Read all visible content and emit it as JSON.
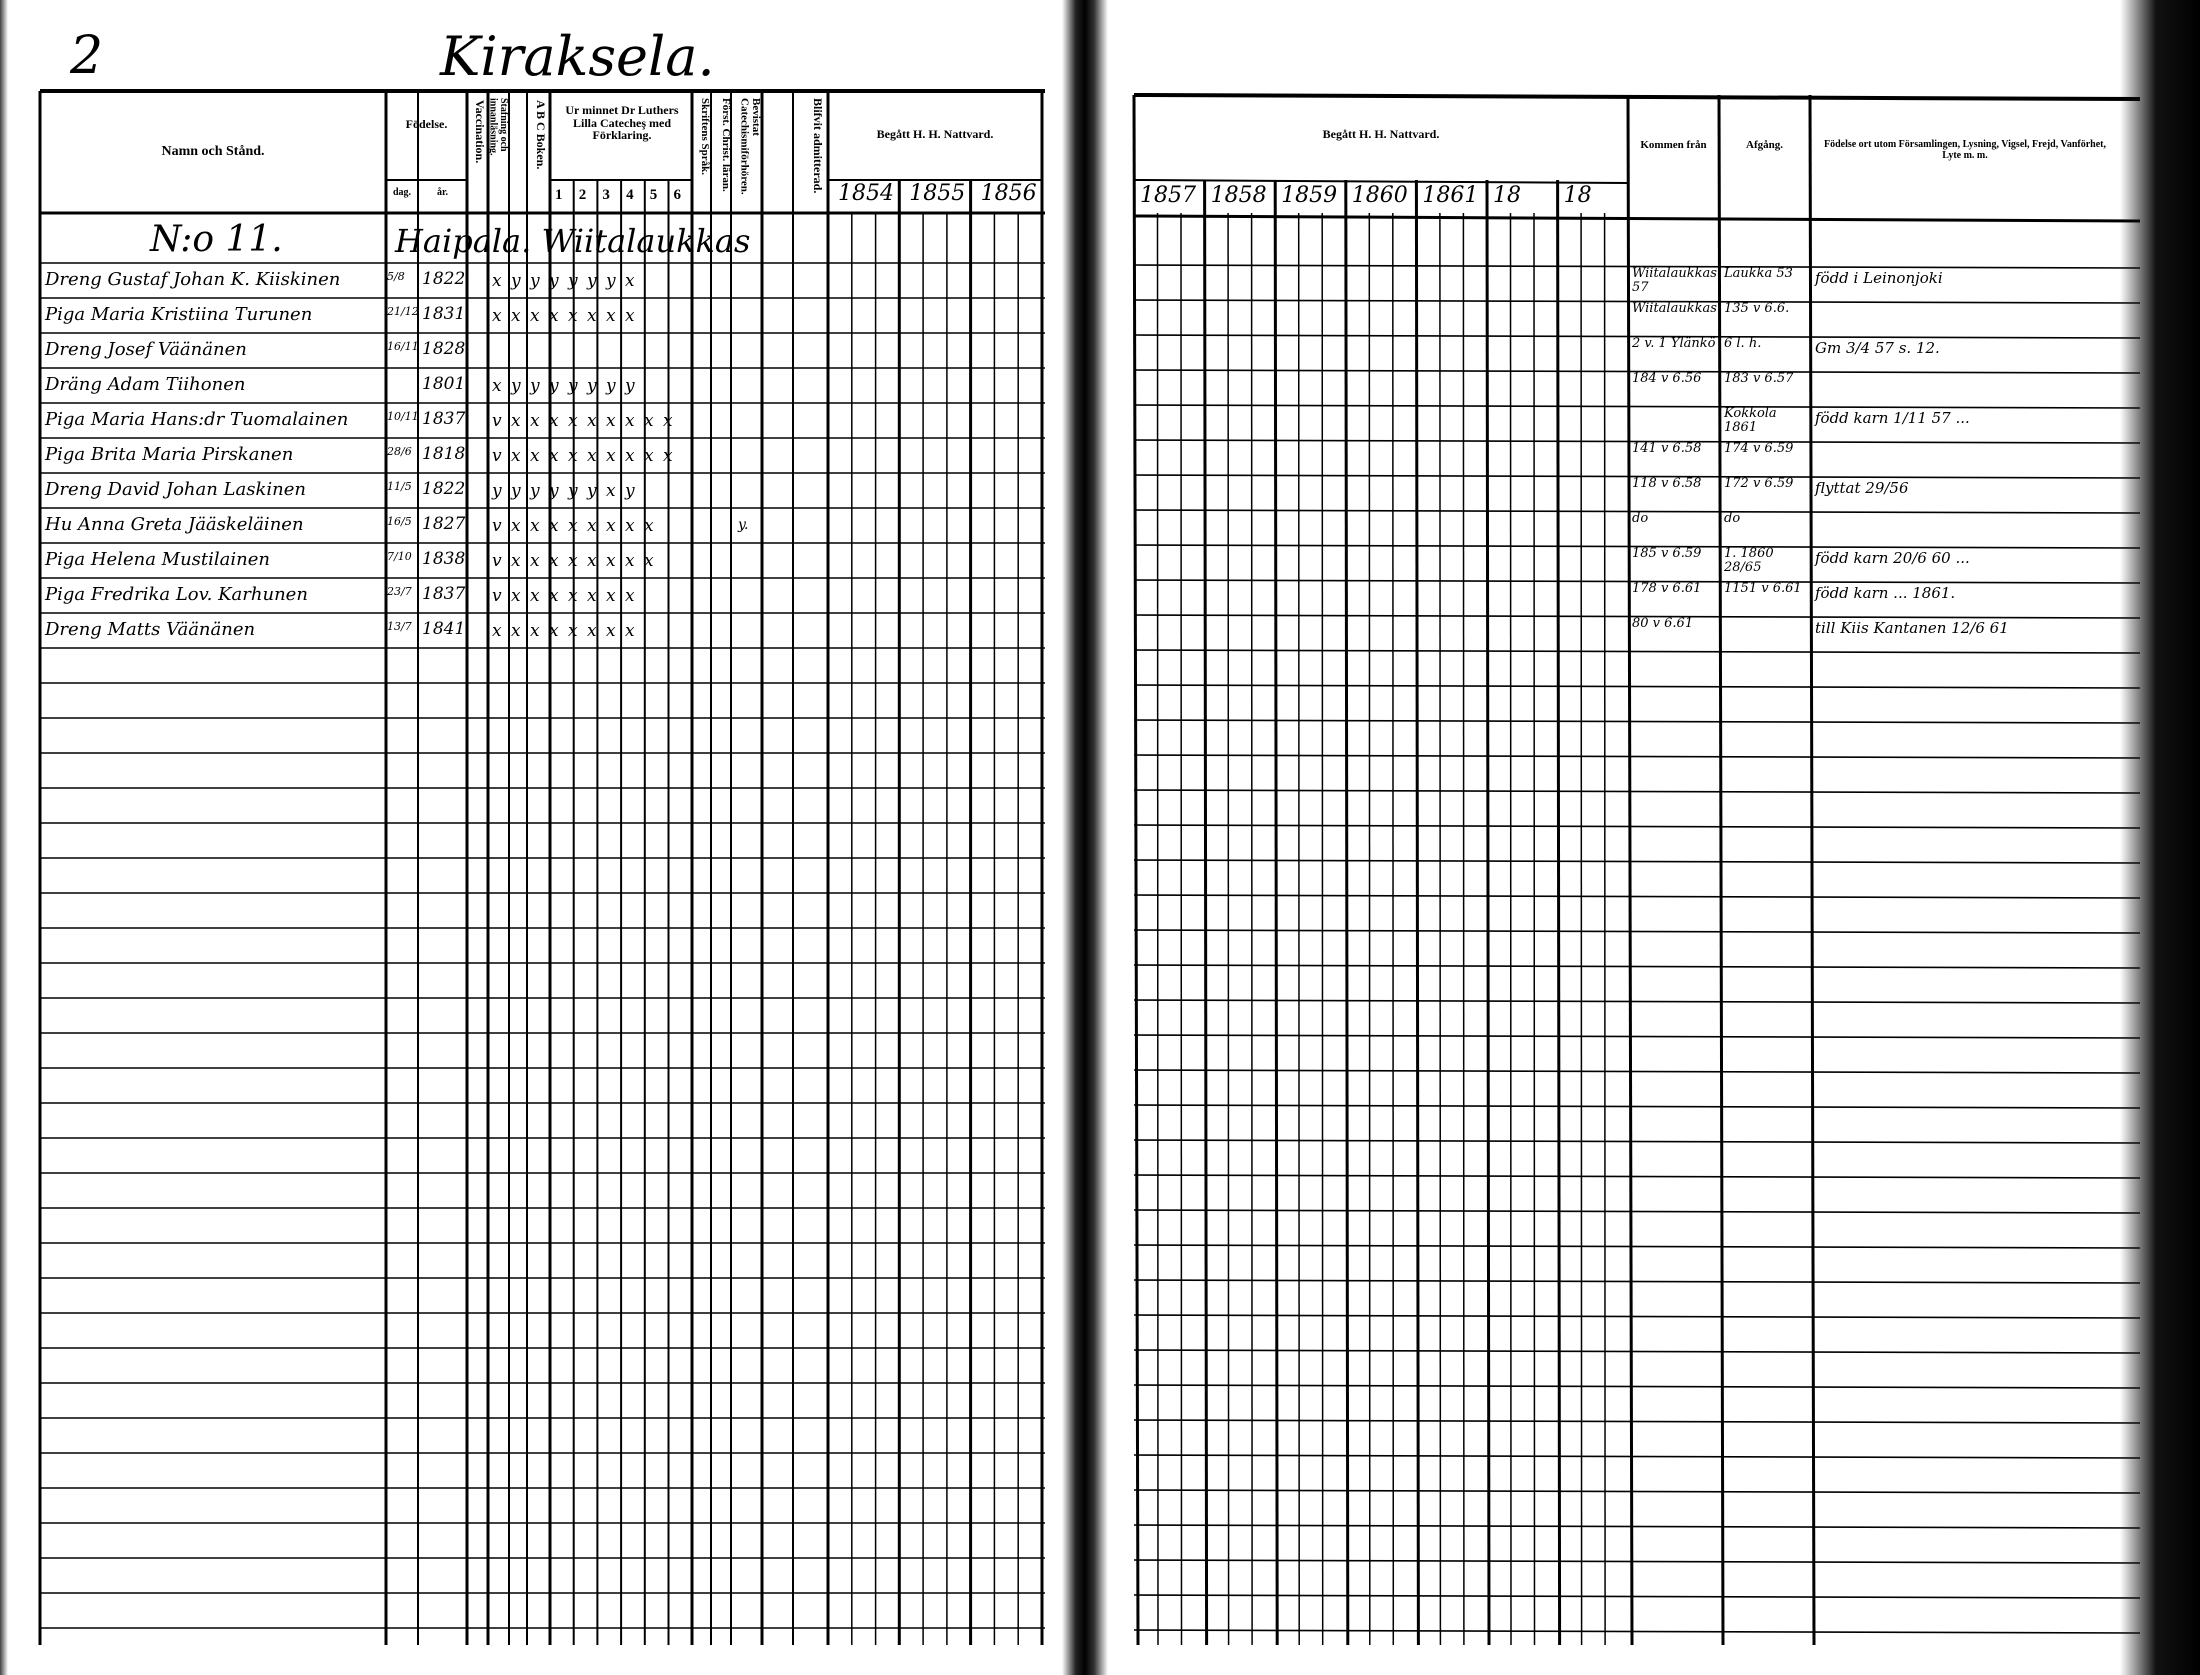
{
  "page": {
    "page_number": "2",
    "title": "Kiraksela.",
    "household_number": "N:o 11.",
    "village": "Haipala. Wiitalaukkas"
  },
  "headers": {
    "name": "Namn och Stånd.",
    "birth": "Födelse.",
    "birth_day": "dag.",
    "birth_year": "år.",
    "vaccination": "Vaccination.",
    "spelling": "Stafning och innanläsning.",
    "abc": "A B C Boken.",
    "catechism": "Ur minnet Dr Luthers Lilla Catecheş med Förklaring.",
    "catechism_cols": [
      "1",
      "2",
      "3",
      "4",
      "5",
      "6"
    ],
    "scripture": "Skriftens Språk.",
    "christian": "Först. Christ. läran.",
    "catechism_hearing": "Bevistat Catechismiförhören.",
    "admitted": "Blifvit admitterad.",
    "communion": "Begått H. H. Nattvard.",
    "communion_years_left": [
      "1854",
      "1855",
      "1856"
    ],
    "communion_years_right": [
      "1857",
      "1858",
      "1859",
      "1860",
      "1861",
      "18",
      "18"
    ],
    "came_from": "Kommen från",
    "departure": "Afgång.",
    "notes": "Födelse ort utom Församlingen, Lysning, Vigsel, Frejd, Vanförhet, Lyte m. m."
  },
  "rows": [
    {
      "name": "Dreng Gustaf Johan K. Kiiskinen",
      "day": "5/8",
      "year": "1822",
      "marks": "x y y y y y y x",
      "admitted": "",
      "came_from": "Wiitalaukkas 57",
      "departure": "Laukka 53",
      "note": "född i Leinonjoki"
    },
    {
      "name": "Piga Maria Kristiina Turunen",
      "day": "21/12",
      "year": "1831",
      "marks": "x x x x x x x x",
      "admitted": "",
      "came_from": "Wiitalaukkas",
      "departure": "135 v 6.6.",
      "note": ""
    },
    {
      "name": "Dreng Josef Väänänen",
      "day": "16/11",
      "year": "1828",
      "marks": "",
      "admitted": "",
      "came_from": "2 v. 1 Ylänkö",
      "departure": "6 l. h.",
      "note": "Gm 3/4 57 s. 12."
    },
    {
      "name": "Dräng Adam Tiihonen",
      "day": "",
      "year": "1801",
      "marks": "x y y y y y y y",
      "admitted": "",
      "came_from": "184 v 6.56",
      "departure": "183 v 6.57",
      "note": ""
    },
    {
      "name": "Piga Maria Hans:dr Tuomalainen",
      "day": "10/11",
      "year": "1837",
      "marks": "v x x x x x x x x x",
      "admitted": "",
      "came_from": "",
      "departure": "Kokkola 1861",
      "note": "född karn 1/11 57 ..."
    },
    {
      "name": "Piga Brita Maria Pirskanen",
      "day": "28/6",
      "year": "1818",
      "marks": "v x x x x x x x x x",
      "admitted": "",
      "came_from": "141 v 6.58",
      "departure": "174 v 6.59",
      "note": ""
    },
    {
      "name": "Dreng David Johan Laskinen",
      "day": "11/5",
      "year": "1822",
      "marks": "y y y y y y x y",
      "admitted": "",
      "came_from": "118 v 6.58",
      "departure": "172 v 6.59",
      "note": "flyttat 29/56"
    },
    {
      "name": "Hu Anna Greta Jääskeläinen",
      "day": "16/5",
      "year": "1827",
      "marks": "v x x x x x x x x",
      "admitted": "y.",
      "came_from": "do",
      "departure": "do",
      "note": ""
    },
    {
      "name": "Piga Helena Mustilainen",
      "day": "7/10",
      "year": "1838",
      "marks": "v x x x x x x x x",
      "admitted": "",
      "came_from": "185 v 6.59",
      "departure": "1. 1860 28/65",
      "note": "född karn 20/6 60 ..."
    },
    {
      "name": "Piga Fredrika Lov. Karhunen",
      "day": "23/7",
      "year": "1837",
      "marks": "v x x x x x x x",
      "admitted": "",
      "came_from": "178 v 6.61",
      "departure": "1151 v 6.61",
      "note": "född karn ... 1861."
    },
    {
      "name": "Dreng Matts Väänänen",
      "day": "13/7",
      "year": "1841",
      "marks": "x x x x x x x x",
      "admitted": "",
      "came_from": "80 v 6.61",
      "departure": "",
      "note": "till Kiis Kantanen 12/6 61"
    }
  ]
}
